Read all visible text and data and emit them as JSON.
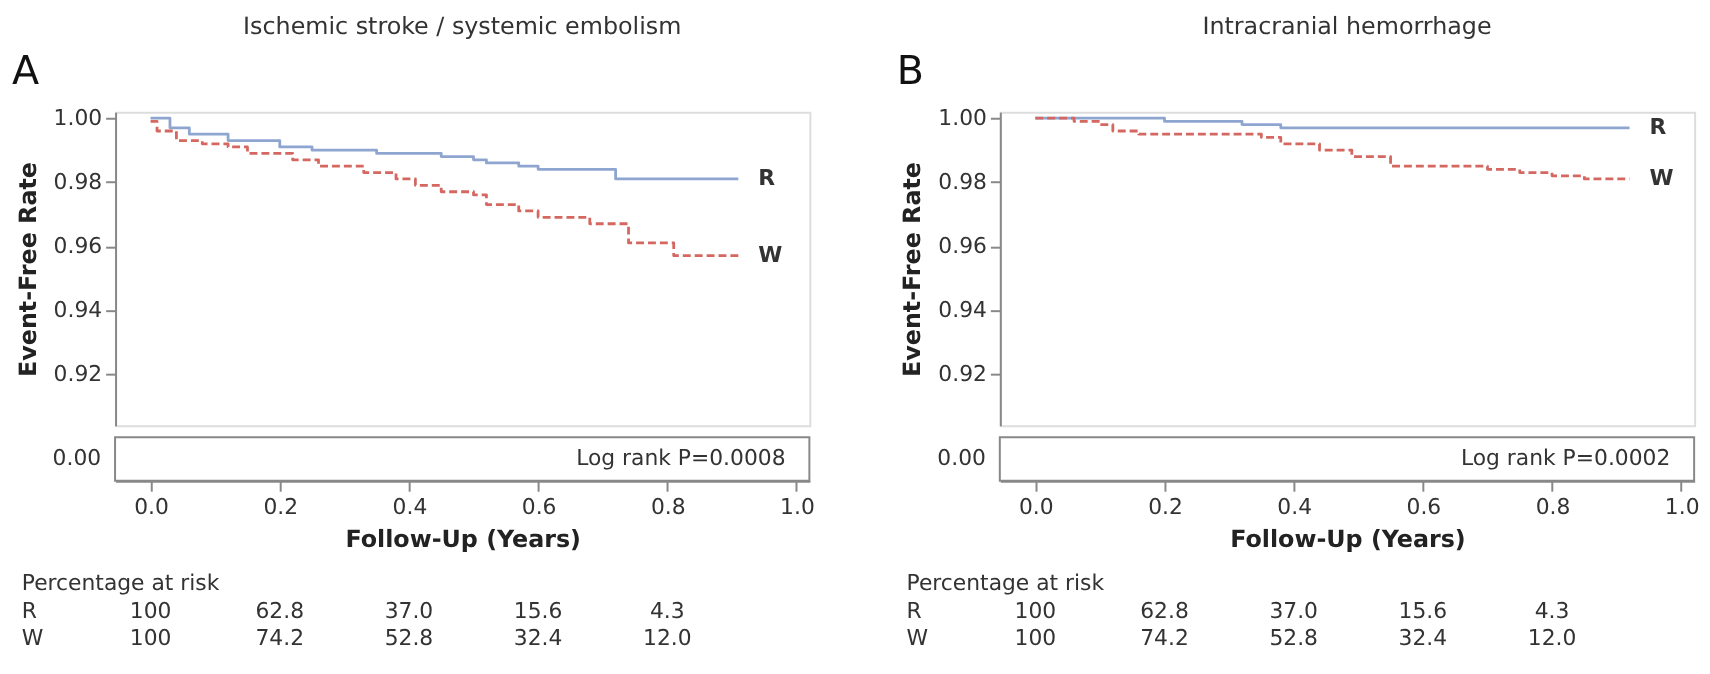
{
  "chart_data": [
    {
      "type": "step",
      "title": "Ischemic stroke / systemic embolism",
      "xlabel": "Follow-Up (Years)",
      "ylabel": "Event-Free Rate",
      "xlim": [
        -0.055,
        1.02
      ],
      "xticks": [
        {
          "value": 0,
          "label": "0.0"
        },
        {
          "value": 0.2,
          "label": "0.2"
        },
        {
          "value": 0.4,
          "label": "0.4"
        },
        {
          "value": 0.6,
          "label": "0.6"
        },
        {
          "value": 0.8,
          "label": "0.8"
        },
        {
          "value": 1,
          "label": "1.0"
        }
      ],
      "ylim": [
        0.904,
        1.002
      ],
      "yticks": [
        {
          "value": 0.92,
          "label": "0.92"
        },
        {
          "value": 0.94,
          "label": "0.94"
        },
        {
          "value": 0.96,
          "label": "0.96"
        },
        {
          "value": 0.98,
          "label": "0.98"
        },
        {
          "value": 1.0,
          "label": "1.00"
        }
      ],
      "grid": false,
      "legend": false,
      "marker": "none",
      "series": [
        {
          "name": "R",
          "color": "#8ea5cf",
          "line_style": "solid",
          "x": [
            0,
            0.03,
            0.06,
            0.12,
            0.2,
            0.25,
            0.35,
            0.45,
            0.5,
            0.52,
            0.57,
            0.6,
            0.72,
            0.91
          ],
          "values": [
            1.0,
            0.997,
            0.995,
            0.993,
            0.991,
            0.99,
            0.989,
            0.988,
            0.987,
            0.986,
            0.985,
            0.984,
            0.981,
            0.981
          ]
        },
        {
          "name": "W",
          "color": "#d4675f",
          "line_style": "dashed",
          "x": [
            0,
            0.01,
            0.04,
            0.08,
            0.12,
            0.15,
            0.22,
            0.26,
            0.33,
            0.38,
            0.41,
            0.45,
            0.5,
            0.52,
            0.57,
            0.6,
            0.68,
            0.74,
            0.81,
            0.91
          ],
          "values": [
            0.999,
            0.996,
            0.993,
            0.992,
            0.991,
            0.989,
            0.987,
            0.985,
            0.983,
            0.981,
            0.979,
            0.977,
            0.976,
            0.973,
            0.971,
            0.969,
            0.967,
            0.961,
            0.957,
            0.957
          ]
        }
      ],
      "annotations": [
        "A",
        "0.00",
        "Log rank P=0.0008",
        "Percentage at risk",
        "R 100 62.8 37.0 15.6 4.3",
        "W 100 74.2 52.8 32.4 12.0"
      ]
    },
    {
      "type": "step",
      "title": "Intracranial hemorrhage",
      "xlabel": "Follow-Up (Years)",
      "ylabel": "Event-Free Rate",
      "xlim": [
        -0.055,
        1.02
      ],
      "xticks": [
        {
          "value": 0,
          "label": "0.0"
        },
        {
          "value": 0.2,
          "label": "0.2"
        },
        {
          "value": 0.4,
          "label": "0.4"
        },
        {
          "value": 0.6,
          "label": "0.6"
        },
        {
          "value": 0.8,
          "label": "0.8"
        },
        {
          "value": 1,
          "label": "1.0"
        }
      ],
      "ylim": [
        0.904,
        1.002
      ],
      "yticks": [
        {
          "value": 0.92,
          "label": "0.92"
        },
        {
          "value": 0.94,
          "label": "0.94"
        },
        {
          "value": 0.96,
          "label": "0.96"
        },
        {
          "value": 0.98,
          "label": "0.98"
        },
        {
          "value": 1.0,
          "label": "1.00"
        }
      ],
      "grid": false,
      "legend": false,
      "marker": "none",
      "series": [
        {
          "name": "R",
          "color": "#8ea5cf",
          "line_style": "solid",
          "x": [
            0,
            0.2,
            0.32,
            0.38,
            0.92
          ],
          "values": [
            1.0,
            0.999,
            0.998,
            0.997,
            0.997
          ]
        },
        {
          "name": "W",
          "color": "#d4675f",
          "line_style": "dashed",
          "x": [
            0,
            0.06,
            0.1,
            0.12,
            0.16,
            0.35,
            0.38,
            0.44,
            0.49,
            0.55,
            0.7,
            0.75,
            0.8,
            0.85,
            0.92
          ],
          "values": [
            1.0,
            0.999,
            0.998,
            0.996,
            0.995,
            0.994,
            0.992,
            0.99,
            0.988,
            0.985,
            0.984,
            0.983,
            0.982,
            0.981,
            0.981
          ]
        }
      ],
      "annotations": [
        "B",
        "0.00",
        "Log rank P=0.0002",
        "Percentage at risk",
        "R 100 62.8 37.0 15.6 4.3",
        "W 100 74.2 52.8 32.4 12.0"
      ]
    }
  ]
}
